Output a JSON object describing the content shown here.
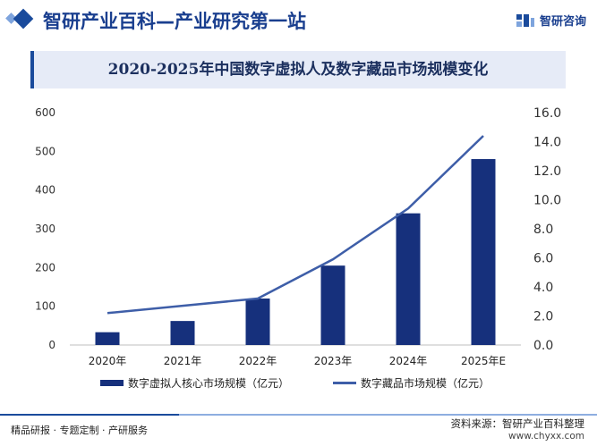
{
  "header": {
    "title": "智研产业百科—产业研究第一站",
    "brand": "智研咨询"
  },
  "chart_data": {
    "type": "bar",
    "title": "2020-2025年中国数字虚拟人及数字藏品市场规模变化",
    "categories": [
      "2020年",
      "2021年",
      "2022年",
      "2023年",
      "2024年",
      "2025年E"
    ],
    "series": [
      {
        "name": "数字虚拟人核心市场规模（亿元）",
        "type": "bar",
        "axis": "left",
        "values": [
          33,
          62,
          120,
          205,
          340,
          480
        ]
      },
      {
        "name": "数字藏品市场规模（亿元）",
        "type": "line",
        "axis": "right",
        "values": [
          2.2,
          2.7,
          3.2,
          5.9,
          9.4,
          14.4
        ]
      }
    ],
    "ylim_left": [
      0,
      600
    ],
    "yticks_left": [
      "0",
      "100",
      "200",
      "300",
      "400",
      "500",
      "600"
    ],
    "ylim_right": [
      0,
      16
    ],
    "yticks_right": [
      "0.0",
      "2.0",
      "4.0",
      "6.0",
      "8.0",
      "10.0",
      "12.0",
      "14.0",
      "16.0"
    ],
    "grid": false,
    "legend_position": "bottom",
    "colors": {
      "bar": "#16307c",
      "line": "#3e5ea8"
    }
  },
  "footer": {
    "left": "精品研报 · 专题定制 · 产研服务",
    "source": "资料来源：智研产业百科整理",
    "site": "www.chyxx.com"
  }
}
